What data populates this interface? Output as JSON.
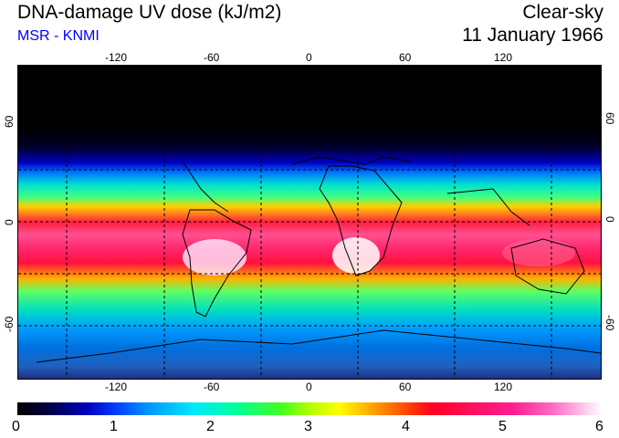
{
  "header": {
    "title": "DNA-damage UV dose (kJ/m2)",
    "credit": "MSR - KNMI",
    "condition": "Clear-sky",
    "date": "11 January 1966"
  },
  "axes": {
    "longitude_labels": [
      "-120",
      "-60",
      "0",
      "60",
      "120"
    ],
    "latitude_labels": [
      "60",
      "0",
      "-60"
    ]
  },
  "colorbar": {
    "labels": [
      "0",
      "1",
      "2",
      "3",
      "4",
      "5",
      "6"
    ],
    "min": 0,
    "max": 6
  },
  "colors": {
    "credit": "#0000ff"
  }
}
